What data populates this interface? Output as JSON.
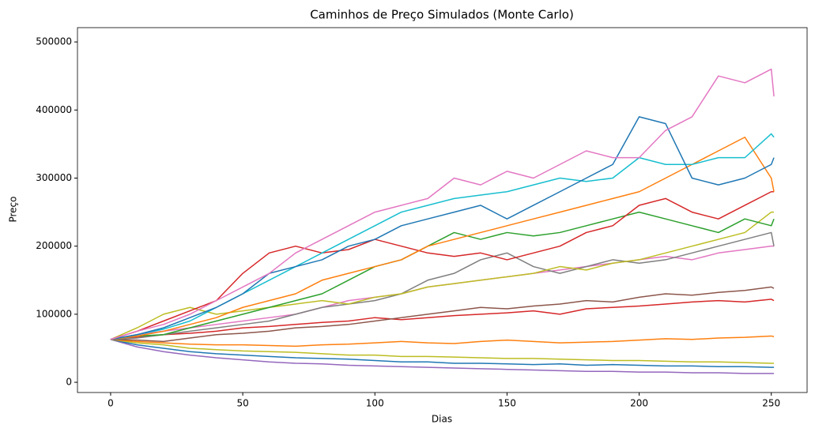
{
  "chart_data": {
    "type": "line",
    "title": "Caminhos de Preço Simulados (Monte Carlo)",
    "xlabel": "Dias",
    "ylabel": "Preço",
    "xlim": [
      -12.55,
      263.55
    ],
    "ylim": [
      -15000,
      521000
    ],
    "xticks": [
      0,
      50,
      100,
      150,
      200,
      250
    ],
    "yticks": [
      0,
      100000,
      200000,
      300000,
      400000,
      500000
    ],
    "x": [
      0,
      10,
      20,
      30,
      40,
      50,
      60,
      70,
      80,
      90,
      100,
      110,
      120,
      130,
      140,
      150,
      160,
      170,
      180,
      190,
      200,
      210,
      220,
      230,
      240,
      250,
      251
    ],
    "series": [
      {
        "color": "#9467bd",
        "values": [
          63000,
          52000,
          45000,
          40000,
          36000,
          33000,
          30000,
          28000,
          27000,
          25000,
          24000,
          23000,
          22000,
          21000,
          20000,
          19000,
          18000,
          17000,
          16000,
          16000,
          15000,
          15000,
          14000,
          14000,
          13000,
          13000,
          13000
        ]
      },
      {
        "color": "#1f77b4",
        "values": [
          63000,
          55000,
          50000,
          45000,
          42000,
          40000,
          38000,
          36000,
          35000,
          34000,
          32000,
          30000,
          30000,
          28000,
          28000,
          27000,
          26000,
          27000,
          25000,
          26000,
          25000,
          24000,
          24000,
          23000,
          23000,
          22000,
          22000
        ]
      },
      {
        "color": "#bcbd22",
        "values": [
          63000,
          58000,
          55000,
          50000,
          48000,
          46000,
          45000,
          44000,
          42000,
          40000,
          40000,
          38000,
          38000,
          37000,
          36000,
          35000,
          35000,
          34000,
          33000,
          32000,
          32000,
          31000,
          30000,
          30000,
          29000,
          28000,
          28000
        ]
      },
      {
        "color": "#ff7f0e",
        "values": [
          63000,
          60000,
          58000,
          56000,
          55000,
          55000,
          54000,
          53000,
          55000,
          56000,
          58000,
          60000,
          58000,
          57000,
          60000,
          62000,
          60000,
          58000,
          59000,
          60000,
          62000,
          64000,
          63000,
          65000,
          66000,
          68000,
          67000
        ]
      },
      {
        "color": "#d62728",
        "values": [
          63000,
          66000,
          70000,
          72000,
          75000,
          80000,
          82000,
          85000,
          88000,
          90000,
          95000,
          92000,
          95000,
          98000,
          100000,
          102000,
          105000,
          100000,
          108000,
          110000,
          112000,
          115000,
          118000,
          120000,
          118000,
          122000,
          120000
        ]
      },
      {
        "color": "#8c564b",
        "values": [
          63000,
          62000,
          60000,
          65000,
          70000,
          72000,
          75000,
          80000,
          82000,
          85000,
          90000,
          95000,
          100000,
          105000,
          110000,
          108000,
          112000,
          115000,
          120000,
          118000,
          125000,
          130000,
          128000,
          132000,
          135000,
          140000,
          138000
        ]
      },
      {
        "color": "#e377c2",
        "values": [
          63000,
          70000,
          75000,
          80000,
          85000,
          90000,
          95000,
          100000,
          110000,
          120000,
          125000,
          130000,
          140000,
          145000,
          150000,
          155000,
          160000,
          165000,
          170000,
          175000,
          180000,
          185000,
          180000,
          190000,
          195000,
          200000,
          200000
        ]
      },
      {
        "color": "#7f7f7f",
        "values": [
          63000,
          65000,
          70000,
          75000,
          80000,
          85000,
          90000,
          100000,
          110000,
          115000,
          120000,
          130000,
          150000,
          160000,
          180000,
          190000,
          170000,
          160000,
          170000,
          180000,
          175000,
          180000,
          190000,
          200000,
          210000,
          220000,
          200000
        ]
      },
      {
        "color": "#bcbd22",
        "values": [
          63000,
          80000,
          100000,
          110000,
          100000,
          105000,
          110000,
          115000,
          120000,
          115000,
          125000,
          130000,
          140000,
          145000,
          150000,
          155000,
          160000,
          170000,
          165000,
          175000,
          180000,
          190000,
          200000,
          210000,
          220000,
          250000,
          250000
        ]
      },
      {
        "color": "#2ca02c",
        "values": [
          63000,
          68000,
          70000,
          80000,
          90000,
          100000,
          110000,
          120000,
          130000,
          150000,
          170000,
          180000,
          200000,
          220000,
          210000,
          220000,
          215000,
          220000,
          230000,
          240000,
          250000,
          240000,
          230000,
          220000,
          240000,
          230000,
          240000
        ]
      },
      {
        "color": "#d62728",
        "values": [
          63000,
          75000,
          90000,
          105000,
          120000,
          160000,
          190000,
          200000,
          190000,
          195000,
          210000,
          200000,
          190000,
          185000,
          190000,
          180000,
          190000,
          200000,
          220000,
          230000,
          260000,
          270000,
          250000,
          240000,
          260000,
          280000,
          280000
        ]
      },
      {
        "color": "#ff7f0e",
        "values": [
          63000,
          68000,
          75000,
          85000,
          95000,
          110000,
          120000,
          130000,
          150000,
          160000,
          170000,
          180000,
          200000,
          210000,
          220000,
          230000,
          240000,
          250000,
          260000,
          270000,
          280000,
          300000,
          320000,
          340000,
          360000,
          300000,
          280000
        ]
      },
      {
        "color": "#17becf",
        "values": [
          63000,
          70000,
          78000,
          90000,
          110000,
          130000,
          150000,
          170000,
          190000,
          210000,
          230000,
          250000,
          260000,
          270000,
          275000,
          280000,
          290000,
          300000,
          295000,
          300000,
          330000,
          320000,
          320000,
          330000,
          330000,
          365000,
          360000
        ]
      },
      {
        "color": "#1f77b4",
        "values": [
          63000,
          70000,
          80000,
          95000,
          110000,
          130000,
          160000,
          170000,
          180000,
          200000,
          210000,
          230000,
          240000,
          250000,
          260000,
          240000,
          260000,
          280000,
          300000,
          320000,
          390000,
          380000,
          300000,
          290000,
          300000,
          320000,
          330000
        ]
      },
      {
        "color": "#e377c2",
        "values": [
          63000,
          75000,
          85000,
          100000,
          120000,
          140000,
          160000,
          190000,
          210000,
          230000,
          250000,
          260000,
          270000,
          300000,
          290000,
          310000,
          300000,
          320000,
          340000,
          330000,
          330000,
          370000,
          390000,
          450000,
          440000,
          460000,
          420000
        ]
      }
    ]
  }
}
